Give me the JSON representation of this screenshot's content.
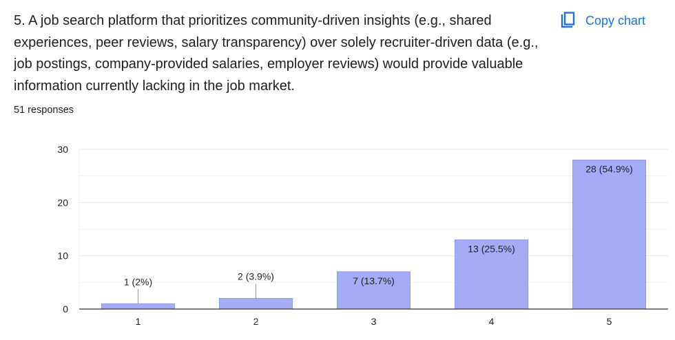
{
  "question": {
    "text": "5. A job search platform that prioritizes community-driven insights (e.g., shared experiences, peer reviews, salary transparency) over solely recruiter-driven data (e.g., job postings, company-provided salaries, employer reviews) would provide valuable information currently lacking in the job market."
  },
  "responses_label": "51 responses",
  "copy_button": {
    "label": "Copy chart",
    "icon": "copy-icon"
  },
  "colors": {
    "bar": "#a3acf5",
    "bar_stroke": "#8f99ef",
    "accent": "#1a73e8",
    "grid": "#e6e6e6",
    "axis": "#333333"
  },
  "chart_data": {
    "type": "bar",
    "title": "",
    "xlabel": "",
    "ylabel": "",
    "categories": [
      "1",
      "2",
      "3",
      "4",
      "5"
    ],
    "values": [
      1,
      2,
      7,
      13,
      28
    ],
    "labels": [
      "1 (2%)",
      "2 (3.9%)",
      "7 (13.7%)",
      "13 (25.5%)",
      "28 (54.9%)"
    ],
    "ylim": [
      0,
      30
    ],
    "yticks": [
      0,
      10,
      20,
      30
    ],
    "grid": true
  }
}
